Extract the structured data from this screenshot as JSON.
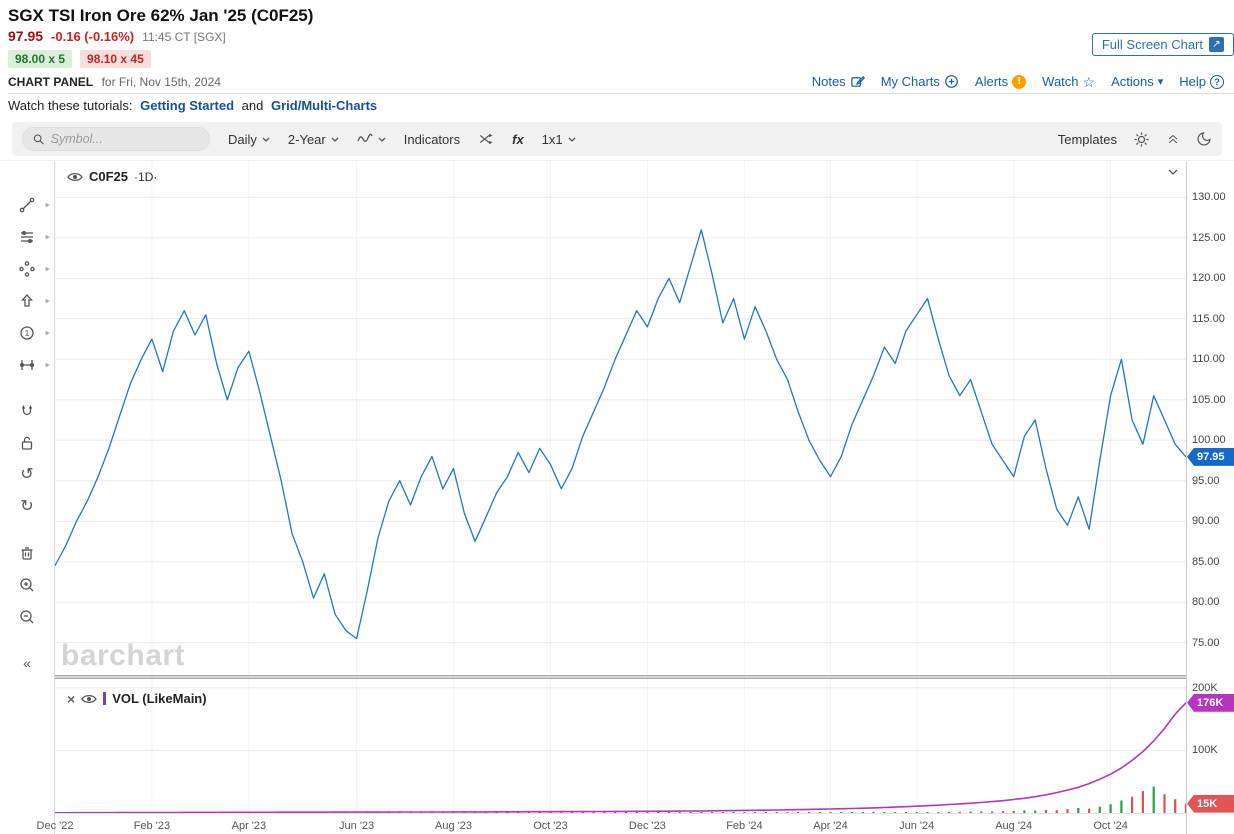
{
  "header": {
    "title": "SGX TSI Iron Ore 62% Jan '25 (C0F25)",
    "last_price": "97.95",
    "change": "-0.16 (-0.16%)",
    "quote_time": "11:45 CT [SGX]",
    "bid": "98.00 x 5",
    "ask": "98.10 x 45",
    "full_screen_button": "Full Screen Chart",
    "panel_label": "CHART PANEL",
    "panel_date": "for Fri, Nov 15th, 2024",
    "links": [
      {
        "label": "Notes"
      },
      {
        "label": "My Charts"
      },
      {
        "label": "Alerts"
      },
      {
        "label": "Watch"
      },
      {
        "label": "Actions"
      },
      {
        "label": "Help"
      }
    ],
    "tutorial_prefix": "Watch these tutorials:",
    "tutorial_link1": "Getting Started",
    "tutorial_and": "and",
    "tutorial_link2": "Grid/Multi-Charts"
  },
  "toolbar": {
    "symbol_placeholder": "Symbol...",
    "frequency": "Daily",
    "range": "2-Year",
    "indicators": "Indicators",
    "fx": "fx",
    "layout": "1x1",
    "templates": "Templates"
  },
  "chart": {
    "legend_symbol": "C0F25",
    "legend_period": "·1D·",
    "watermark": "barchart",
    "price_pill": "97.95",
    "vol_legend": "VOL (LikeMain)",
    "vol_pill": "176K",
    "volbar_pill": "15K"
  },
  "chart_data": {
    "type": "line",
    "title": "SGX TSI Iron Ore 62% Jan '25 (C0F25) — Daily, 2-Year",
    "ylim": [
      71,
      134.5
    ],
    "y_ticks": [
      130,
      125,
      120,
      115,
      110,
      105,
      100,
      95,
      90,
      85,
      80,
      75
    ],
    "x_ticks": [
      {
        "label": "Dec '22",
        "i": 0
      },
      {
        "label": "Feb '23",
        "i": 9
      },
      {
        "label": "Apr '23",
        "i": 18
      },
      {
        "label": "Jun '23",
        "i": 28
      },
      {
        "label": "Aug '23",
        "i": 37
      },
      {
        "label": "Oct '23",
        "i": 46
      },
      {
        "label": "Dec '23",
        "i": 55
      },
      {
        "label": "Feb '24",
        "i": 64
      },
      {
        "label": "Apr '24",
        "i": 72
      },
      {
        "label": "Jun '24",
        "i": 80
      },
      {
        "label": "Aug '24",
        "i": 89
      },
      {
        "label": "Oct '24",
        "i": 98
      }
    ],
    "last_price": 97.95,
    "volume_ylim": [
      0,
      214000
    ],
    "volume_ticks": [
      {
        "label": "200K",
        "value": 200000
      },
      {
        "label": "100K",
        "value": 100000
      }
    ],
    "series": [
      {
        "name": "C0F25 daily close",
        "type": "line",
        "axis": "price",
        "values": [
          84.5,
          87,
          90,
          92.5,
          95.5,
          99,
          103,
          107,
          110,
          112.5,
          108.5,
          113.5,
          116,
          113,
          115.5,
          109.5,
          105,
          109,
          111,
          106,
          100.5,
          95,
          88.5,
          85,
          80.5,
          83.5,
          78.5,
          76.5,
          75.5,
          81.5,
          88,
          92.5,
          95,
          92,
          95.5,
          98,
          94,
          96.5,
          91,
          87.5,
          90.5,
          93.5,
          95.5,
          98.5,
          96,
          99,
          97,
          94,
          96.5,
          100.5,
          103.5,
          106.5,
          110,
          113,
          116,
          114,
          117.5,
          120,
          117,
          121.5,
          126,
          120.5,
          114.5,
          117.5,
          112.5,
          116.5,
          113.5,
          110,
          107.5,
          103.5,
          100,
          97.5,
          95.5,
          98,
          102,
          105,
          108,
          111.5,
          109.5,
          113.5,
          115.5,
          117.5,
          112.5,
          108,
          105.5,
          107.5,
          103.5,
          99.5,
          97.5,
          95.5,
          100.5,
          102.5,
          96.5,
          91.5,
          89.5,
          93,
          89,
          97.5,
          105.5,
          110,
          102.5,
          99.5,
          105.5,
          102.5,
          99.5,
          97.95
        ]
      },
      {
        "name": "VOL (LikeMain) line",
        "type": "line",
        "axis": "volume",
        "values": [
          300,
          350,
          400,
          450,
          500,
          550,
          600,
          650,
          700,
          750,
          800,
          850,
          900,
          950,
          1000,
          1030,
          1060,
          1090,
          1120,
          1150,
          1180,
          1210,
          1240,
          1270,
          1300,
          1330,
          1360,
          1390,
          1420,
          1450,
          1480,
          1510,
          1540,
          1570,
          1600,
          1630,
          1660,
          1700,
          1740,
          1780,
          1820,
          1860,
          1900,
          1950,
          2000,
          2050,
          2100,
          2160,
          2220,
          2280,
          2350,
          2420,
          2500,
          2580,
          2660,
          2750,
          2850,
          2950,
          3050,
          3200,
          3350,
          3500,
          3700,
          3900,
          4100,
          4300,
          4550,
          4800,
          5100,
          5400,
          5700,
          6000,
          6400,
          6800,
          7200,
          7700,
          8200,
          8800,
          9400,
          10000,
          10800,
          11600,
          12500,
          13500,
          14500,
          15600,
          16800,
          18200,
          19700,
          21500,
          23500,
          26000,
          29000,
          32500,
          36500,
          41000,
          47000,
          54000,
          62000,
          72000,
          84000,
          98000,
          115000,
          135000,
          158000,
          176000
        ]
      },
      {
        "name": "Volume bars",
        "type": "bar",
        "axis": "volume",
        "values": [
          150,
          200,
          180,
          220,
          250,
          200,
          300,
          260,
          240,
          280,
          320,
          300,
          260,
          300,
          340,
          310,
          280,
          330,
          350,
          300,
          380,
          340,
          320,
          360,
          400,
          370,
          340,
          390,
          410,
          380,
          420,
          390,
          360,
          400,
          430,
          410,
          380,
          420,
          450,
          430,
          400,
          440,
          460,
          430,
          470,
          450,
          480,
          500,
          470,
          490,
          520,
          490,
          530,
          510,
          550,
          560,
          540,
          580,
          560,
          600,
          650,
          620,
          680,
          640,
          700,
          660,
          720,
          690,
          750,
          800,
          760,
          820,
          900,
          1000,
          950,
          1100,
          1200,
          1350,
          1250,
          1450,
          1600,
          1800,
          1700,
          2000,
          1900,
          2200,
          2600,
          2400,
          2900,
          3400,
          4200,
          3800,
          5000,
          4500,
          6000,
          8000,
          7000,
          10000,
          14000,
          20000,
          26000,
          35000,
          42000,
          30000,
          22000,
          15000
        ]
      }
    ],
    "colors": {
      "price_line": "#2176c7",
      "vol_line": "#b535c0",
      "bar_up": "#2f9e44",
      "bar_down": "#d9534f",
      "price_pill_bg": "#1669c9",
      "vol_pill_bg": "#b535c0",
      "volbar_pill_bg": "#e25555"
    }
  }
}
